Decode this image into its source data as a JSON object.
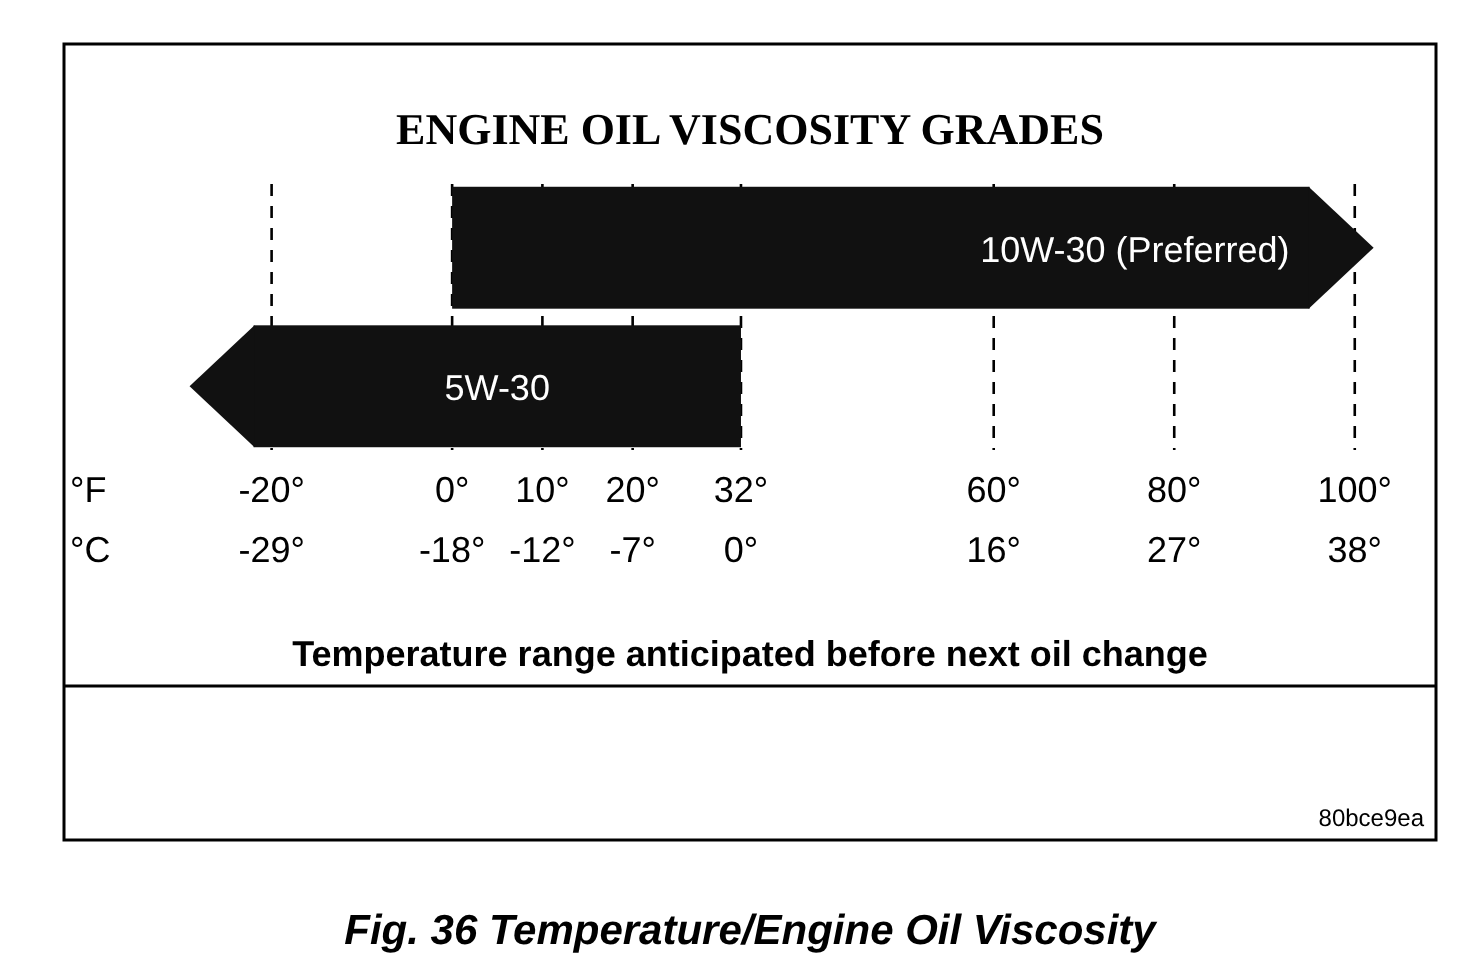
{
  "chart_data": {
    "type": "bar",
    "orientation": "horizontal",
    "title": "ENGINE OIL VISCOSITY GRADES",
    "categories": [
      "10W-30 (Preferred)",
      "5W-30"
    ],
    "values": [
      95,
      54
    ],
    "base": [
      0,
      -22
    ],
    "color": "#111111",
    "xlabel": "°F",
    "x2label": "°C",
    "xlim": [
      -43,
      109
    ],
    "xticks": [
      {
        "value": -20,
        "label": "-20°"
      },
      {
        "value": 0,
        "label": "0°"
      },
      {
        "value": 10,
        "label": "10°"
      },
      {
        "value": 20,
        "label": "20°"
      },
      {
        "value": 32,
        "label": "32°"
      },
      {
        "value": 60,
        "label": "60°"
      },
      {
        "value": 80,
        "label": "80°"
      },
      {
        "value": 100,
        "label": "100°"
      }
    ],
    "x2lim": [
      -41.67,
      42.78
    ],
    "x2ticks": [
      {
        "value": -28.89,
        "label": "-29°"
      },
      {
        "value": -17.78,
        "label": "-18°"
      },
      {
        "value": -12.22,
        "label": "-12°"
      },
      {
        "value": -6.67,
        "label": "-7°"
      },
      {
        "value": 0,
        "label": "0°"
      },
      {
        "value": 15.56,
        "label": "16°"
      },
      {
        "value": 26.67,
        "label": "27°"
      },
      {
        "value": 37.78,
        "label": "38°"
      }
    ],
    "grid": "x",
    "line_style": "dashed",
    "tick_labels": "x",
    "annotations": [
      "Temperature range anticipated before next oil change",
      "80bce9ea",
      "Fig. 36 Temperature/Engine Oil Viscosity"
    ]
  }
}
